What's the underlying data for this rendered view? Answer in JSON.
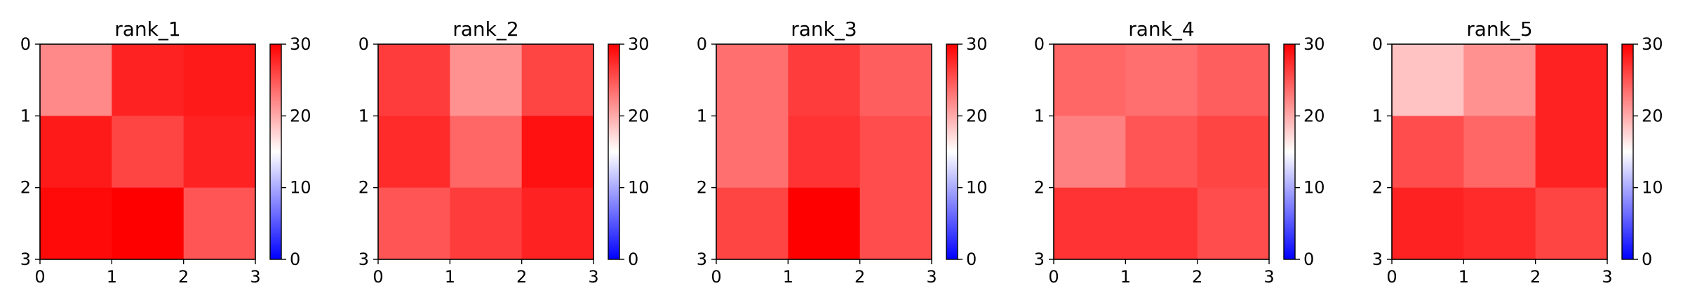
{
  "chart_data": [
    {
      "type": "heatmap",
      "title": "rank_1",
      "x_ticks": [
        "0",
        "1",
        "2",
        "3"
      ],
      "y_ticks": [
        "0",
        "1",
        "2",
        "3"
      ],
      "colorbar": {
        "min": 0,
        "max": 30,
        "ticks": [
          "0",
          "10",
          "20",
          "30"
        ]
      },
      "values": [
        [
          22,
          28,
          28.5
        ],
        [
          28.5,
          26,
          28
        ],
        [
          29.5,
          30,
          25
        ]
      ]
    },
    {
      "type": "heatmap",
      "title": "rank_2",
      "x_ticks": [
        "0",
        "1",
        "2",
        "3"
      ],
      "y_ticks": [
        "0",
        "1",
        "2",
        "3"
      ],
      "colorbar": {
        "min": 0,
        "max": 30,
        "ticks": [
          "0",
          "10",
          "20",
          "30"
        ]
      },
      "values": [
        [
          26.5,
          21.5,
          26
        ],
        [
          27.5,
          24,
          29
        ],
        [
          25,
          26.5,
          28
        ]
      ]
    },
    {
      "type": "heatmap",
      "title": "rank_3",
      "x_ticks": [
        "0",
        "1",
        "2",
        "3"
      ],
      "y_ticks": [
        "0",
        "1",
        "2",
        "3"
      ],
      "colorbar": {
        "min": 0,
        "max": 30,
        "ticks": [
          "0",
          "10",
          "20",
          "30"
        ]
      },
      "values": [
        [
          23.5,
          26.5,
          24.5
        ],
        [
          23.5,
          27,
          25.5
        ],
        [
          26,
          30,
          25.5
        ]
      ]
    },
    {
      "type": "heatmap",
      "title": "rank_4",
      "x_ticks": [
        "0",
        "1",
        "2",
        "3"
      ],
      "y_ticks": [
        "0",
        "1",
        "2",
        "3"
      ],
      "colorbar": {
        "min": 0,
        "max": 30,
        "ticks": [
          "0",
          "10",
          "20",
          "30"
        ]
      },
      "values": [
        [
          24,
          23.5,
          24.5
        ],
        [
          22.5,
          25,
          26
        ],
        [
          27,
          27,
          25.5
        ]
      ]
    },
    {
      "type": "heatmap",
      "title": "rank_5",
      "x_ticks": [
        "0",
        "1",
        "2",
        "3"
      ],
      "y_ticks": [
        "0",
        "1",
        "2",
        "3"
      ],
      "colorbar": {
        "min": 0,
        "max": 30,
        "ticks": [
          "0",
          "10",
          "20",
          "30"
        ]
      },
      "values": [
        [
          18.5,
          21.5,
          28
        ],
        [
          25.5,
          24,
          28
        ],
        [
          28,
          27.5,
          26
        ]
      ]
    }
  ],
  "colors": {
    "cmap_low": "#0000ff",
    "cmap_mid": "#ffffff",
    "cmap_high": "#ff0000"
  }
}
